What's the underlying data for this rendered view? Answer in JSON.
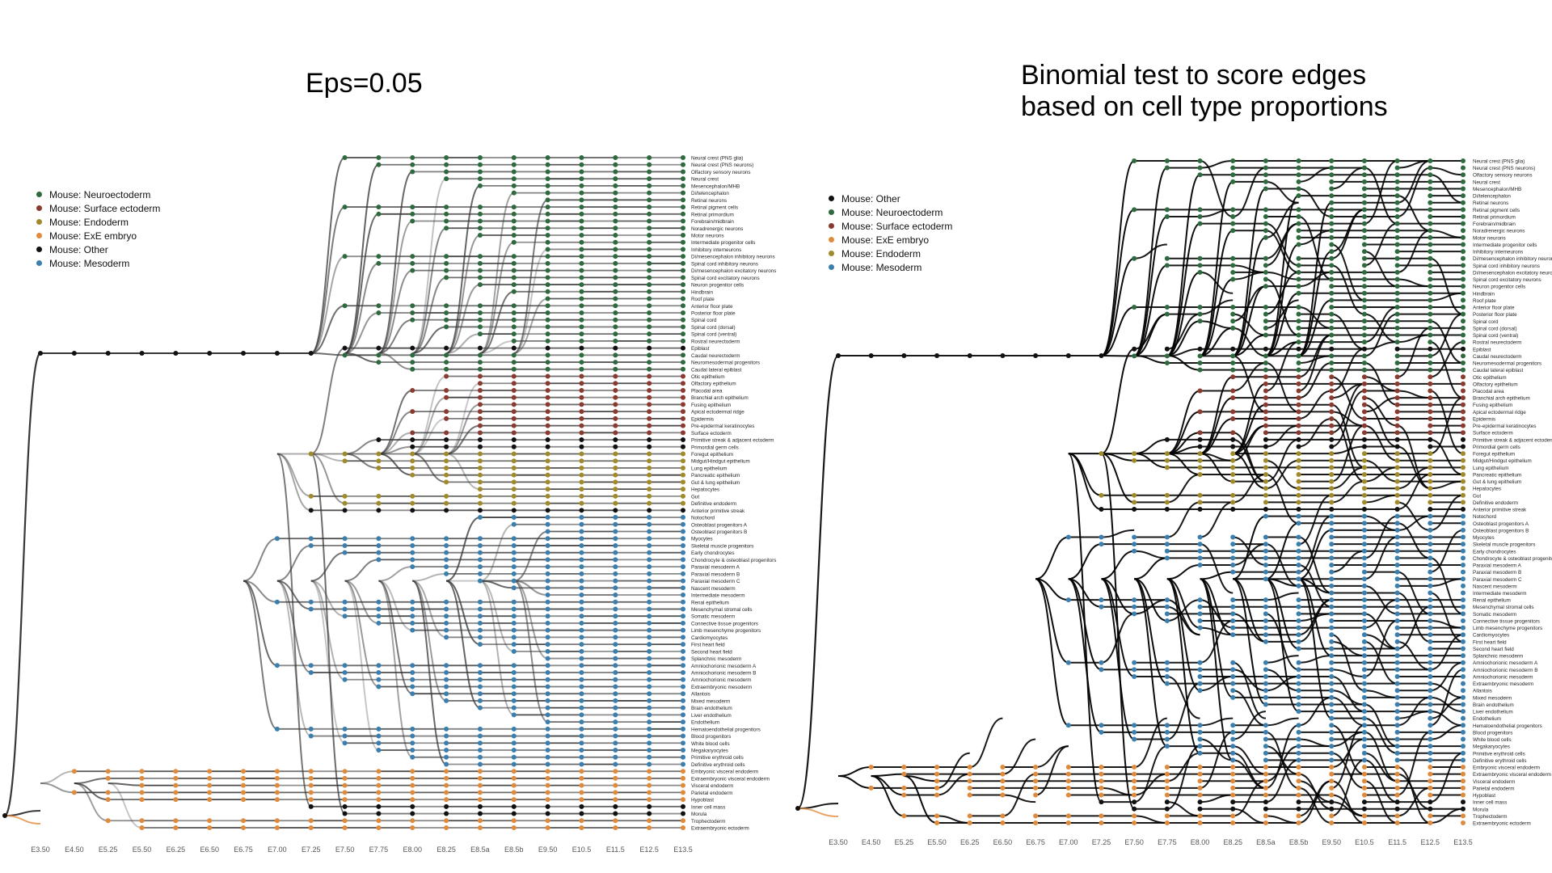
{
  "left_panel": {
    "title": "Eps=0.05",
    "legend": [
      {
        "label": "Mouse: Neuroectoderm",
        "color": "#2d6a3e"
      },
      {
        "label": "Mouse: Surface ectoderm",
        "color": "#8b3a2f"
      },
      {
        "label": "Mouse: Endoderm",
        "color": "#a08a2a"
      },
      {
        "label": "Mouse: ExE embryo",
        "color": "#e08a3c"
      },
      {
        "label": "Mouse: Other",
        "color": "#111111"
      },
      {
        "label": "Mouse: Mesoderm",
        "color": "#3b7fae"
      }
    ]
  },
  "right_panel": {
    "title_line1": "Binomial test to score edges",
    "title_line2": "based on cell type proportions",
    "legend": [
      {
        "label": "Mouse: Other",
        "color": "#111111"
      },
      {
        "label": "Mouse: Neuroectoderm",
        "color": "#2d6a3e"
      },
      {
        "label": "Mouse: Surface ectoderm",
        "color": "#8b3a2f"
      },
      {
        "label": "Mouse: ExE embryo",
        "color": "#e08a3c"
      },
      {
        "label": "Mouse: Endoderm",
        "color": "#a08a2a"
      },
      {
        "label": "Mouse: Mesoderm",
        "color": "#3b7fae"
      }
    ]
  },
  "stages": [
    "E3.50",
    "E4.50",
    "E5.25",
    "E5.50",
    "E6.25",
    "E6.50",
    "E6.75",
    "E7.00",
    "E7.25",
    "E7.50",
    "E7.75",
    "E8.00",
    "E8.25",
    "E8.5a",
    "E8.5b",
    "E9.50",
    "E10.5",
    "E11.5",
    "E12.5",
    "E13.5"
  ],
  "cell_types": [
    {
      "label": "Neural crest (PNS glia)",
      "group": "neuro"
    },
    {
      "label": "Neural crest (PNS neurons)",
      "group": "neuro"
    },
    {
      "label": "Olfactory sensory neurons",
      "group": "neuro"
    },
    {
      "label": "Neural crest",
      "group": "neuro"
    },
    {
      "label": "Mesencephalon/MHB",
      "group": "neuro"
    },
    {
      "label": "Di/telencephalon",
      "group": "neuro"
    },
    {
      "label": "Retinal neurons",
      "group": "neuro"
    },
    {
      "label": "Retinal pigment cells",
      "group": "neuro"
    },
    {
      "label": "Retinal primordium",
      "group": "neuro"
    },
    {
      "label": "Forebrain/midbrain",
      "group": "neuro"
    },
    {
      "label": "Noradrenergic neurons",
      "group": "neuro"
    },
    {
      "label": "Motor neurons",
      "group": "neuro"
    },
    {
      "label": "Intermediate progenitor cells",
      "group": "neuro"
    },
    {
      "label": "Inhibitory interneurons",
      "group": "neuro"
    },
    {
      "label": "Di/mesencephalon inhibitory neurons",
      "group": "neuro"
    },
    {
      "label": "Spinal cord inhibitory neurons",
      "group": "neuro"
    },
    {
      "label": "Di/mesencephalon excitatory neurons",
      "group": "neuro"
    },
    {
      "label": "Spinal cord excitatory neurons",
      "group": "neuro"
    },
    {
      "label": "Neuron progenitor cells",
      "group": "neuro"
    },
    {
      "label": "Hindbrain",
      "group": "neuro"
    },
    {
      "label": "Roof plate",
      "group": "neuro"
    },
    {
      "label": "Anterior floor plate",
      "group": "neuro"
    },
    {
      "label": "Posterior floor plate",
      "group": "neuro"
    },
    {
      "label": "Spinal cord",
      "group": "neuro"
    },
    {
      "label": "Spinal cord (dorsal)",
      "group": "neuro"
    },
    {
      "label": "Spinal cord (ventral)",
      "group": "neuro"
    },
    {
      "label": "Rostral neurectoderm",
      "group": "neuro"
    },
    {
      "label": "Epiblast",
      "group": "other"
    },
    {
      "label": "Caudal neurectoderm",
      "group": "neuro"
    },
    {
      "label": "Neuromesodermal progenitors",
      "group": "neuro"
    },
    {
      "label": "Caudal lateral epiblast",
      "group": "neuro"
    },
    {
      "label": "Otic epithelium",
      "group": "surface"
    },
    {
      "label": "Olfactory epithelium",
      "group": "surface"
    },
    {
      "label": "Placodal area",
      "group": "surface"
    },
    {
      "label": "Branchial arch epithelium",
      "group": "surface"
    },
    {
      "label": "Fusing epithelium",
      "group": "surface"
    },
    {
      "label": "Apical ectodermal ridge",
      "group": "surface"
    },
    {
      "label": "Epidermis",
      "group": "surface"
    },
    {
      "label": "Pre-epidermal keratinocytes",
      "group": "surface"
    },
    {
      "label": "Surface ectoderm",
      "group": "surface"
    },
    {
      "label": "Primitive streak & adjacent ectoderm",
      "group": "other"
    },
    {
      "label": "Primordial germ cells",
      "group": "other"
    },
    {
      "label": "Foregut epithelium",
      "group": "endo"
    },
    {
      "label": "Midgut/Hindgut epithelium",
      "group": "endo"
    },
    {
      "label": "Lung epithelium",
      "group": "endo"
    },
    {
      "label": "Pancreatic epithelium",
      "group": "endo"
    },
    {
      "label": "Gut & lung epithelium",
      "group": "endo"
    },
    {
      "label": "Hepatocytes",
      "group": "endo"
    },
    {
      "label": "Gut",
      "group": "endo"
    },
    {
      "label": "Definitive endoderm",
      "group": "endo"
    },
    {
      "label": "Anterior primitive streak",
      "group": "other"
    },
    {
      "label": "Notochord",
      "group": "meso"
    },
    {
      "label": "Osteoblast progenitors A",
      "group": "meso"
    },
    {
      "label": "Osteoblast progenitors B",
      "group": "meso"
    },
    {
      "label": "Myocytes",
      "group": "meso"
    },
    {
      "label": "Skeletal muscle progenitors",
      "group": "meso"
    },
    {
      "label": "Early chondrocytes",
      "group": "meso"
    },
    {
      "label": "Chondrocyte & osteoblast progenitors",
      "group": "meso"
    },
    {
      "label": "Paraxial mesoderm A",
      "group": "meso"
    },
    {
      "label": "Paraxial mesoderm B",
      "group": "meso"
    },
    {
      "label": "Paraxial mesoderm C",
      "group": "meso"
    },
    {
      "label": "Nascent mesoderm",
      "group": "meso"
    },
    {
      "label": "Intermediate mesoderm",
      "group": "meso"
    },
    {
      "label": "Renal epithelium",
      "group": "meso"
    },
    {
      "label": "Mesenchymal stromal cells",
      "group": "meso"
    },
    {
      "label": "Somatic mesoderm",
      "group": "meso"
    },
    {
      "label": "Connective tissue progenitors",
      "group": "meso"
    },
    {
      "label": "Limb mesenchyme progenitors",
      "group": "meso"
    },
    {
      "label": "Cardiomyocytes",
      "group": "meso"
    },
    {
      "label": "First heart field",
      "group": "meso"
    },
    {
      "label": "Second heart field",
      "group": "meso"
    },
    {
      "label": "Splanchnic mesoderm",
      "group": "meso"
    },
    {
      "label": "Amniochorionic mesoderm A",
      "group": "meso"
    },
    {
      "label": "Amniochorionic mesoderm B",
      "group": "meso"
    },
    {
      "label": "Amniochorionic mesoderm",
      "group": "meso"
    },
    {
      "label": "Extraembryonic mesoderm",
      "group": "meso"
    },
    {
      "label": "Allantois",
      "group": "meso"
    },
    {
      "label": "Mixed mesoderm",
      "group": "meso"
    },
    {
      "label": "Brain endothelium",
      "group": "meso"
    },
    {
      "label": "Liver endothelium",
      "group": "meso"
    },
    {
      "label": "Endothelium",
      "group": "meso"
    },
    {
      "label": "Hematoendothelial progenitors",
      "group": "meso"
    },
    {
      "label": "Blood progenitors",
      "group": "meso"
    },
    {
      "label": "White blood cells",
      "group": "meso"
    },
    {
      "label": "Megakaryocytes",
      "group": "meso"
    },
    {
      "label": "Primitive erythroid cells",
      "group": "meso"
    },
    {
      "label": "Definitive erythroid cells",
      "group": "meso"
    },
    {
      "label": "Embryonic visceral endoderm",
      "group": "exe"
    },
    {
      "label": "Extraembryonic visceral endoderm",
      "group": "exe"
    },
    {
      "label": "Visceral endoderm",
      "group": "exe"
    },
    {
      "label": "Parietal endoderm",
      "group": "exe"
    },
    {
      "label": "Hypoblast",
      "group": "exe"
    },
    {
      "label": "Inner cell mass",
      "group": "other"
    },
    {
      "label": "Morula",
      "group": "other"
    },
    {
      "label": "Trophectoderm",
      "group": "exe"
    },
    {
      "label": "Extraembryonic ectoderm",
      "group": "exe"
    }
  ],
  "group_colors": {
    "neuro": "#2d6a3e",
    "surface": "#8b3a2f",
    "endo": "#a08a2a",
    "exe": "#e08a3c",
    "other": "#111111",
    "meso": "#3b7fae"
  }
}
